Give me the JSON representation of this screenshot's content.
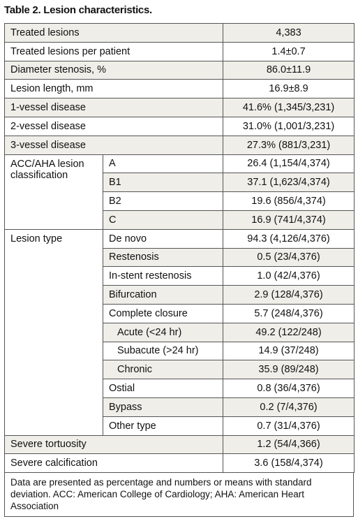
{
  "title": "Table 2. Lesion characteristics.",
  "table": {
    "rows": [
      {
        "label": "Treated lesions",
        "value": "4,383"
      },
      {
        "label": "Treated lesions per patient",
        "value": "1.4±0.7"
      },
      {
        "label": "Diameter stenosis, %",
        "value": "86.0±11.9"
      },
      {
        "label": "Lesion length, mm",
        "value": "16.9±8.9"
      },
      {
        "label": "1-vessel disease",
        "value": "41.6% (1,345/3,231)"
      },
      {
        "label": "2-vessel disease",
        "value": "31.0% (1,001/3,231)"
      },
      {
        "label": "3-vessel disease",
        "value": "27.3% (881/3,231)"
      },
      {
        "label": "ACC/AHA lesion classification",
        "items": [
          {
            "label": "A",
            "value": "26.4 (1,154/4,374)"
          },
          {
            "label": "B1",
            "value": "37.1 (1,623/4,374)"
          },
          {
            "label": "B2",
            "value": "19.6 (856/4,374)"
          },
          {
            "label": "C",
            "value": "16.9 (741/4,374)"
          }
        ]
      },
      {
        "label": "Lesion type",
        "items": [
          {
            "label": "De novo",
            "value": "94.3 (4,126/4,376)"
          },
          {
            "label": "Restenosis",
            "value": "0.5 (23/4,376)"
          },
          {
            "label": "In-stent restenosis",
            "value": "1.0 (42/4,376)"
          },
          {
            "label": "Bifurcation",
            "value": "2.9 (128/4,376)"
          },
          {
            "label": "Complete closure",
            "value": "5.7 (248/4,376)",
            "items": [
              {
                "label": "Acute (<24 hr)",
                "value": "49.2 (122/248)"
              },
              {
                "label": "Subacute (>24 hr)",
                "value": "14.9 (37/248)"
              },
              {
                "label": "Chronic",
                "value": "35.9 (89/248)"
              }
            ]
          },
          {
            "label": "Ostial",
            "value": "0.8 (36/4,376)"
          },
          {
            "label": "Bypass",
            "value": "0.2 (7/4,376)"
          },
          {
            "label": "Other type",
            "value": "0.7 (31/4,376)"
          }
        ]
      },
      {
        "label": "Severe tortuosity",
        "value": "1.2 (54/4,366)"
      },
      {
        "label": "Severe calcification",
        "value": "3.6 (158/4,374)"
      }
    ],
    "footnote": "Data are presented as percentage and numbers or means with standard deviation. ACC: American College of Cardiology; AHA: American Heart Association"
  }
}
